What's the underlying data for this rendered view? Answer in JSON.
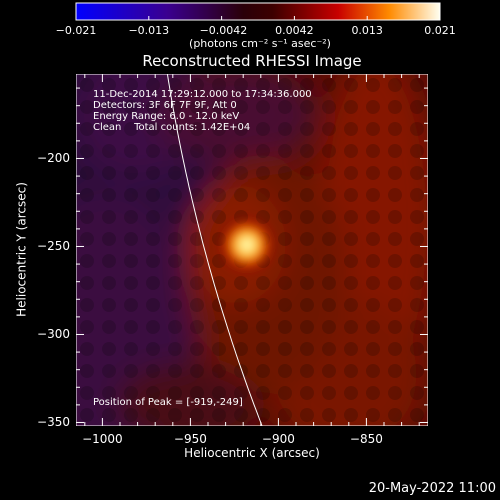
{
  "colorbar": {
    "tick_labels": [
      "−0.021",
      "−0.013",
      "−0.0042",
      "0.0042",
      "0.013",
      "0.021"
    ],
    "min": -0.021,
    "max": 0.021,
    "unit_text": "(photons cm⁻² s⁻¹ asec⁻²)"
  },
  "plot": {
    "title": "Reconstructed RHESSI Image",
    "xlabel": "Heliocentric X (arcsec)",
    "ylabel": "Heliocentric Y (arcsec)",
    "xlim": [
      -1015,
      -815
    ],
    "ylim": [
      -352,
      -152
    ],
    "x_ticks": [
      -1000,
      -950,
      -900,
      -850
    ],
    "x_tick_labels": [
      "−1000",
      "−950",
      "−900",
      "−850"
    ],
    "y_ticks": [
      -200,
      -250,
      -300,
      -350
    ],
    "y_tick_labels": [
      "−200",
      "−250",
      "−300",
      "−350"
    ],
    "info_lines": [
      "11-Dec-2014 17:29:12.000 to 17:34:36.000",
      "Detectors: 3F 6F 7F 9F, Att 0",
      "Energy Range: 6.0 - 12.0 keV",
      "Clean    Total counts: 1.42E+04"
    ],
    "peak_text": "Position of Peak = [-919,-249]",
    "peak": {
      "x": -919,
      "y": -249
    }
  },
  "footer": {
    "date": "20-May-2022 11:00"
  },
  "colors": {
    "background": "#000000",
    "axes": "#ffffff",
    "limb": "#ffffff"
  }
}
